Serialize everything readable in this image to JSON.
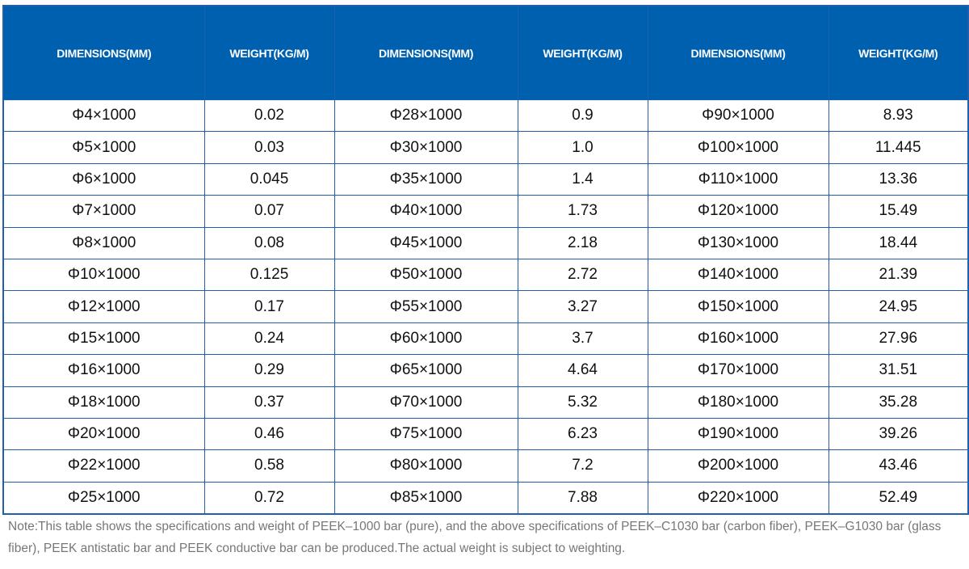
{
  "table": {
    "headers": [
      "DIMENSIONS(MM)",
      "WEIGHT(KG/M)",
      "DIMENSIONS(MM)",
      "WEIGHT(KG/M)",
      "DIMENSIONS(MM)",
      "WEIGHT(KG/M)"
    ],
    "rows": [
      [
        "Φ4×1000",
        "0.02",
        "Φ28×1000",
        "0.9",
        "Φ90×1000",
        "8.93"
      ],
      [
        "Φ5×1000",
        "0.03",
        "Φ30×1000",
        "1.0",
        "Φ100×1000",
        "11.445"
      ],
      [
        "Φ6×1000",
        "0.045",
        "Φ35×1000",
        "1.4",
        "Φ110×1000",
        "13.36"
      ],
      [
        "Φ7×1000",
        "0.07",
        "Φ40×1000",
        "1.73",
        "Φ120×1000",
        "15.49"
      ],
      [
        "Φ8×1000",
        "0.08",
        "Φ45×1000",
        "2.18",
        "Φ130×1000",
        "18.44"
      ],
      [
        "Φ10×1000",
        "0.125",
        "Φ50×1000",
        "2.72",
        "Φ140×1000",
        "21.39"
      ],
      [
        "Φ12×1000",
        "0.17",
        "Φ55×1000",
        "3.27",
        "Φ150×1000",
        "24.95"
      ],
      [
        "Φ15×1000",
        "0.24",
        "Φ60×1000",
        "3.7",
        "Φ160×1000",
        "27.96"
      ],
      [
        "Φ16×1000",
        "0.29",
        "Φ65×1000",
        "4.64",
        "Φ170×1000",
        "31.51"
      ],
      [
        "Φ18×1000",
        "0.37",
        "Φ70×1000",
        "5.32",
        "Φ180×1000",
        "35.28"
      ],
      [
        "Φ20×1000",
        "0.46",
        "Φ75×1000",
        "6.23",
        "Φ190×1000",
        "39.26"
      ],
      [
        "Φ22×1000",
        "0.58",
        "Φ80×1000",
        "7.2",
        "Φ200×1000",
        "43.46"
      ],
      [
        "Φ25×1000",
        "0.72",
        "Φ85×1000",
        "7.88",
        "Φ220×1000",
        "52.49"
      ]
    ]
  },
  "note": "Note:This table shows the specifications and weight of PEEK–1000 bar (pure), and the above specifications of PEEK–C1030 bar (carbon fiber), PEEK–G1030 bar (glass fiber), PEEK antistatic bar and PEEK conductive bar can be produced.The actual weight is subject to weighting.",
  "colors": {
    "header_bg": "#0060b0",
    "border": "#1f5fae",
    "note_text": "#777777"
  }
}
